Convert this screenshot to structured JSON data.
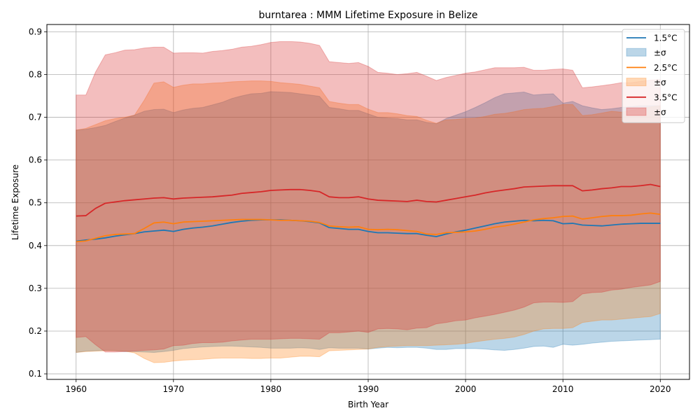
{
  "chart_data": {
    "type": "area",
    "title": "burntarea : MMM Lifetime Exposure in Belize",
    "xlabel": "Birth Year",
    "ylabel": "Lifetime Exposure",
    "xlim": [
      1957,
      2023
    ],
    "ylim": [
      0.087,
      0.917
    ],
    "xticks": [
      1960,
      1970,
      1980,
      1990,
      2000,
      2010,
      2020
    ],
    "yticks": [
      0.1,
      0.2,
      0.3,
      0.4,
      0.5,
      0.6,
      0.7,
      0.8,
      0.9
    ],
    "grid": true,
    "legend_position": "top-right",
    "x": [
      1960,
      1961,
      1962,
      1963,
      1964,
      1965,
      1966,
      1967,
      1968,
      1969,
      1970,
      1971,
      1972,
      1973,
      1974,
      1975,
      1976,
      1977,
      1978,
      1979,
      1980,
      1981,
      1982,
      1983,
      1984,
      1985,
      1986,
      1987,
      1988,
      1989,
      1990,
      1991,
      1992,
      1993,
      1994,
      1995,
      1996,
      1997,
      1998,
      1999,
      2000,
      2001,
      2002,
      2003,
      2004,
      2005,
      2006,
      2007,
      2008,
      2009,
      2010,
      2011,
      2012,
      2013,
      2014,
      2015,
      2016,
      2017,
      2018,
      2019,
      2020
    ],
    "series": [
      {
        "name": "1.5°C",
        "band_label": "±σ",
        "color": "#1f77b4",
        "band_color": "#1f77b4",
        "band_opacity": 0.3,
        "mean": [
          0.41,
          0.413,
          0.415,
          0.418,
          0.422,
          0.425,
          0.428,
          0.432,
          0.434,
          0.436,
          0.433,
          0.438,
          0.441,
          0.443,
          0.446,
          0.45,
          0.454,
          0.457,
          0.459,
          0.46,
          0.46,
          0.46,
          0.459,
          0.458,
          0.456,
          0.453,
          0.442,
          0.44,
          0.438,
          0.438,
          0.433,
          0.43,
          0.43,
          0.429,
          0.428,
          0.428,
          0.424,
          0.421,
          0.427,
          0.432,
          0.436,
          0.441,
          0.446,
          0.451,
          0.455,
          0.457,
          0.459,
          0.458,
          0.459,
          0.458,
          0.451,
          0.452,
          0.448,
          0.447,
          0.446,
          0.448,
          0.45,
          0.451,
          0.452,
          0.452,
          0.452
        ],
        "upper": [
          0.67,
          0.672,
          0.676,
          0.681,
          0.69,
          0.698,
          0.705,
          0.714,
          0.718,
          0.719,
          0.711,
          0.717,
          0.721,
          0.723,
          0.729,
          0.735,
          0.744,
          0.75,
          0.755,
          0.756,
          0.76,
          0.759,
          0.758,
          0.755,
          0.752,
          0.749,
          0.723,
          0.72,
          0.716,
          0.716,
          0.708,
          0.7,
          0.698,
          0.697,
          0.694,
          0.694,
          0.688,
          0.685,
          0.697,
          0.705,
          0.713,
          0.723,
          0.734,
          0.746,
          0.755,
          0.757,
          0.759,
          0.752,
          0.754,
          0.755,
          0.733,
          0.737,
          0.727,
          0.722,
          0.718,
          0.72,
          0.723,
          0.725,
          0.727,
          0.727,
          0.727
        ],
        "lower": [
          0.15,
          0.153,
          0.154,
          0.155,
          0.154,
          0.152,
          0.152,
          0.151,
          0.15,
          0.152,
          0.155,
          0.159,
          0.161,
          0.163,
          0.164,
          0.165,
          0.165,
          0.164,
          0.163,
          0.162,
          0.16,
          0.16,
          0.16,
          0.161,
          0.16,
          0.157,
          0.161,
          0.16,
          0.16,
          0.16,
          0.158,
          0.16,
          0.162,
          0.161,
          0.162,
          0.162,
          0.16,
          0.157,
          0.157,
          0.159,
          0.159,
          0.159,
          0.158,
          0.156,
          0.155,
          0.157,
          0.16,
          0.164,
          0.165,
          0.162,
          0.169,
          0.167,
          0.169,
          0.172,
          0.174,
          0.176,
          0.177,
          0.178,
          0.179,
          0.18,
          0.181
        ]
      },
      {
        "name": "2.5°C",
        "band_label": "±σ",
        "color": "#ff7f0e",
        "band_color": "#ff7f0e",
        "band_opacity": 0.3,
        "mean": [
          0.409,
          0.411,
          0.417,
          0.423,
          0.426,
          0.427,
          0.428,
          0.44,
          0.453,
          0.455,
          0.451,
          0.455,
          0.456,
          0.457,
          0.458,
          0.459,
          0.46,
          0.461,
          0.461,
          0.461,
          0.46,
          0.459,
          0.459,
          0.458,
          0.457,
          0.454,
          0.446,
          0.444,
          0.443,
          0.444,
          0.438,
          0.437,
          0.438,
          0.437,
          0.435,
          0.433,
          0.427,
          0.426,
          0.43,
          0.431,
          0.432,
          0.434,
          0.438,
          0.443,
          0.446,
          0.45,
          0.455,
          0.46,
          0.463,
          0.465,
          0.468,
          0.469,
          0.462,
          0.465,
          0.468,
          0.47,
          0.47,
          0.471,
          0.474,
          0.476,
          0.473
        ],
        "upper": [
          0.67,
          0.674,
          0.683,
          0.692,
          0.697,
          0.7,
          0.705,
          0.74,
          0.78,
          0.783,
          0.77,
          0.775,
          0.778,
          0.778,
          0.78,
          0.781,
          0.783,
          0.784,
          0.785,
          0.785,
          0.784,
          0.781,
          0.779,
          0.777,
          0.773,
          0.769,
          0.737,
          0.733,
          0.73,
          0.73,
          0.719,
          0.711,
          0.711,
          0.708,
          0.704,
          0.702,
          0.693,
          0.686,
          0.694,
          0.695,
          0.697,
          0.698,
          0.702,
          0.707,
          0.709,
          0.713,
          0.718,
          0.72,
          0.721,
          0.725,
          0.73,
          0.73,
          0.704,
          0.706,
          0.71,
          0.714,
          0.712,
          0.716,
          0.72,
          0.724,
          0.727
        ],
        "lower": [
          0.15,
          0.152,
          0.153,
          0.154,
          0.154,
          0.153,
          0.149,
          0.136,
          0.126,
          0.127,
          0.13,
          0.132,
          0.133,
          0.134,
          0.136,
          0.137,
          0.137,
          0.137,
          0.136,
          0.136,
          0.137,
          0.137,
          0.139,
          0.141,
          0.141,
          0.14,
          0.154,
          0.155,
          0.156,
          0.157,
          0.158,
          0.162,
          0.164,
          0.165,
          0.166,
          0.166,
          0.166,
          0.167,
          0.168,
          0.169,
          0.171,
          0.175,
          0.178,
          0.181,
          0.183,
          0.186,
          0.192,
          0.2,
          0.205,
          0.206,
          0.206,
          0.208,
          0.22,
          0.223,
          0.226,
          0.226,
          0.228,
          0.23,
          0.232,
          0.234,
          0.241
        ]
      },
      {
        "name": "3.5°C",
        "band_label": "±σ",
        "color": "#d62728",
        "band_color": "#d62728",
        "band_opacity": 0.3,
        "mean": [
          0.469,
          0.47,
          0.487,
          0.499,
          0.502,
          0.505,
          0.507,
          0.509,
          0.511,
          0.512,
          0.509,
          0.511,
          0.512,
          0.513,
          0.514,
          0.516,
          0.518,
          0.522,
          0.524,
          0.526,
          0.529,
          0.53,
          0.531,
          0.531,
          0.529,
          0.526,
          0.514,
          0.512,
          0.512,
          0.514,
          0.509,
          0.506,
          0.505,
          0.504,
          0.503,
          0.506,
          0.503,
          0.502,
          0.506,
          0.51,
          0.514,
          0.518,
          0.523,
          0.527,
          0.53,
          0.533,
          0.537,
          0.538,
          0.539,
          0.54,
          0.54,
          0.54,
          0.528,
          0.53,
          0.533,
          0.535,
          0.538,
          0.538,
          0.54,
          0.543,
          0.538
        ],
        "upper": [
          0.752,
          0.752,
          0.806,
          0.846,
          0.851,
          0.857,
          0.858,
          0.862,
          0.864,
          0.864,
          0.85,
          0.851,
          0.851,
          0.85,
          0.854,
          0.856,
          0.859,
          0.864,
          0.866,
          0.87,
          0.875,
          0.877,
          0.877,
          0.876,
          0.873,
          0.868,
          0.83,
          0.828,
          0.826,
          0.828,
          0.819,
          0.805,
          0.803,
          0.8,
          0.802,
          0.805,
          0.796,
          0.786,
          0.793,
          0.798,
          0.803,
          0.806,
          0.811,
          0.816,
          0.816,
          0.816,
          0.817,
          0.81,
          0.81,
          0.812,
          0.813,
          0.81,
          0.769,
          0.771,
          0.774,
          0.777,
          0.781,
          0.781,
          0.784,
          0.787,
          0.788
        ],
        "lower": [
          0.185,
          0.187,
          0.168,
          0.151,
          0.151,
          0.152,
          0.153,
          0.155,
          0.156,
          0.158,
          0.166,
          0.167,
          0.171,
          0.173,
          0.173,
          0.174,
          0.177,
          0.179,
          0.181,
          0.181,
          0.181,
          0.182,
          0.183,
          0.183,
          0.182,
          0.181,
          0.196,
          0.196,
          0.198,
          0.2,
          0.197,
          0.205,
          0.206,
          0.205,
          0.203,
          0.207,
          0.208,
          0.217,
          0.22,
          0.224,
          0.226,
          0.231,
          0.235,
          0.239,
          0.244,
          0.249,
          0.256,
          0.266,
          0.268,
          0.268,
          0.267,
          0.269,
          0.287,
          0.29,
          0.291,
          0.296,
          0.298,
          0.302,
          0.305,
          0.308,
          0.316
        ]
      }
    ]
  }
}
